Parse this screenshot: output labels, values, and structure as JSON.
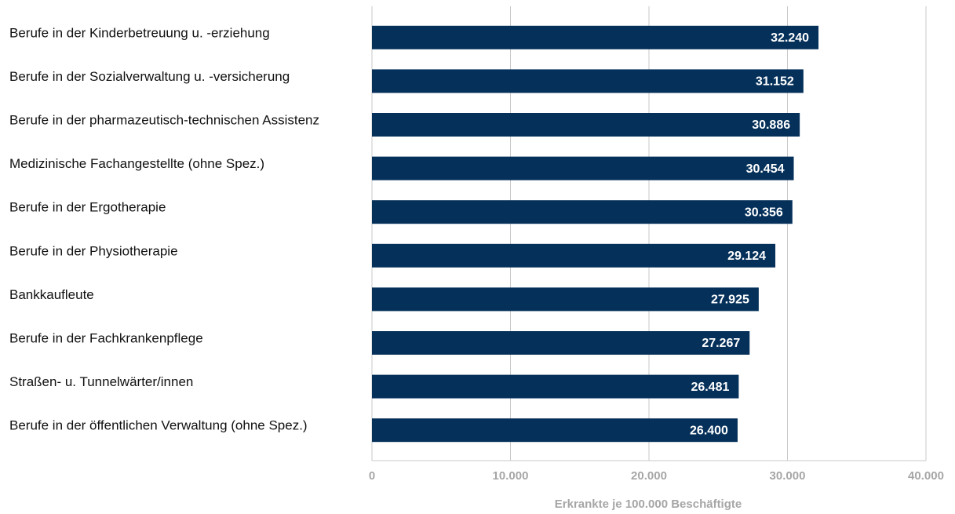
{
  "chart_data": {
    "type": "bar",
    "orientation": "horizontal",
    "x_label": "Erkrankte je 100.000 Beschäftigte",
    "categories": [
      "Berufe in der Kinderbetreuung u. -erziehung",
      "Berufe in der Sozialverwaltung u. -versicherung",
      "Berufe in der pharmazeutisch-technischen Assistenz",
      "Medizinische Fachangestellte (ohne Spez.)",
      "Berufe in der Ergotherapie",
      "Berufe in der Physiotherapie",
      "Bankkaufleute",
      "Berufe in der Fachkrankenpflege",
      "Straßen- u. Tunnelwärter/innen",
      "Berufe in der öffentlichen Verwaltung (ohne Spez.)"
    ],
    "values": [
      32240,
      31152,
      30886,
      30454,
      30356,
      29124,
      27925,
      27267,
      26481,
      26400
    ],
    "value_labels": [
      "32.240",
      "31.152",
      "30.886",
      "30.454",
      "30.356",
      "29.124",
      "27.925",
      "27.267",
      "26.481",
      "26.400"
    ],
    "color": "#05305a",
    "xlim": [
      0,
      40000
    ],
    "xticks": [
      0,
      {
        "value": 10000,
        "label": "10.000"
      },
      {
        "value": 20000,
        "label": "20.000"
      },
      {
        "value": 30000,
        "label": "30.000"
      },
      {
        "value": 40000,
        "label": "40.000"
      }
    ],
    "grid": true
  }
}
